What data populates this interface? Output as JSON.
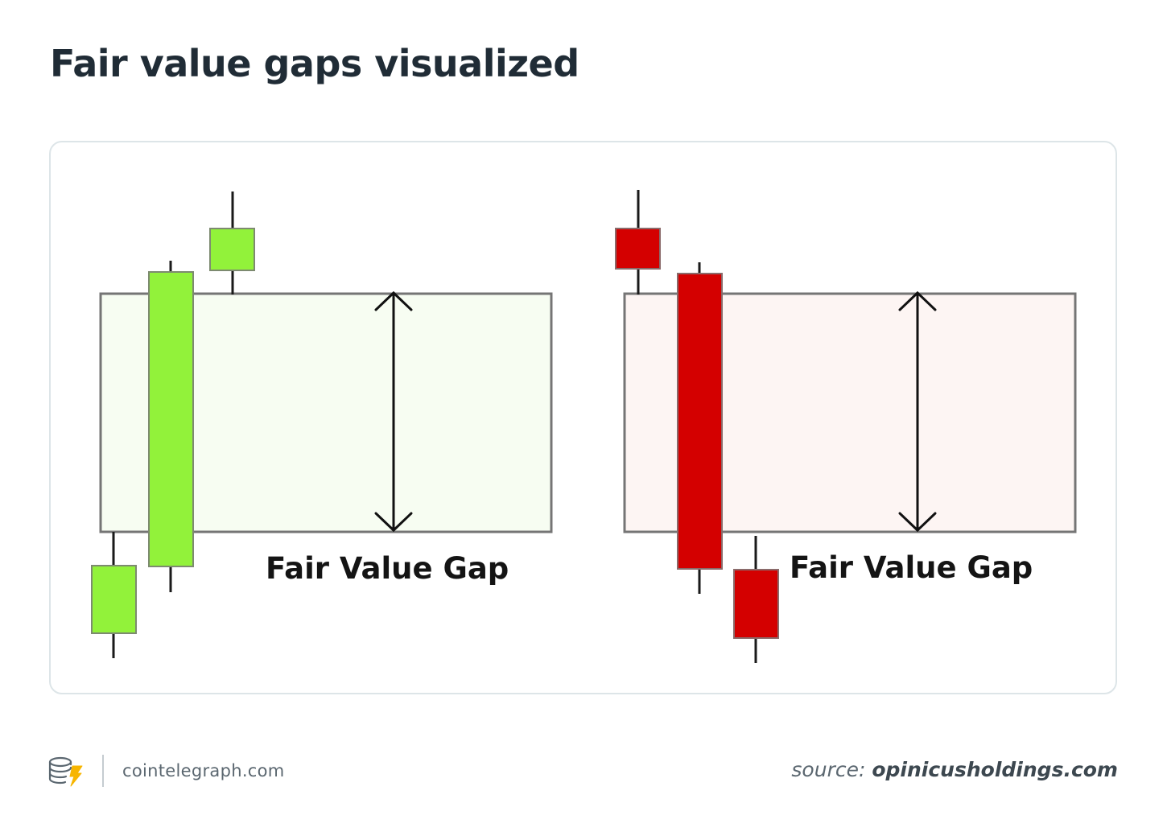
{
  "header": {
    "title": "Fair value gaps visualized"
  },
  "diagram": {
    "panels": [
      {
        "id": "bullish",
        "label": "Fair Value Gap",
        "zone_fill": "#f7fdf2",
        "candle_color": "#92f23a"
      },
      {
        "id": "bearish",
        "label": "Fair Value Gap",
        "zone_fill": "#fdf5f3",
        "candle_color": "#d40000"
      }
    ],
    "icons": [
      "double-headed-arrow-icon"
    ]
  },
  "footer": {
    "brand_site": "cointelegraph.com",
    "brand_icon": "cointelegraph-logo-icon",
    "source_prefix": "source:",
    "source_domain": "opinicusholdings.com"
  },
  "colors": {
    "title": "#202c36",
    "card_border": "#dde5e8",
    "zone_border": "#757575",
    "bull_candle": "#92f23a",
    "bear_candle": "#d40000",
    "footer_text": "#5b6770"
  }
}
